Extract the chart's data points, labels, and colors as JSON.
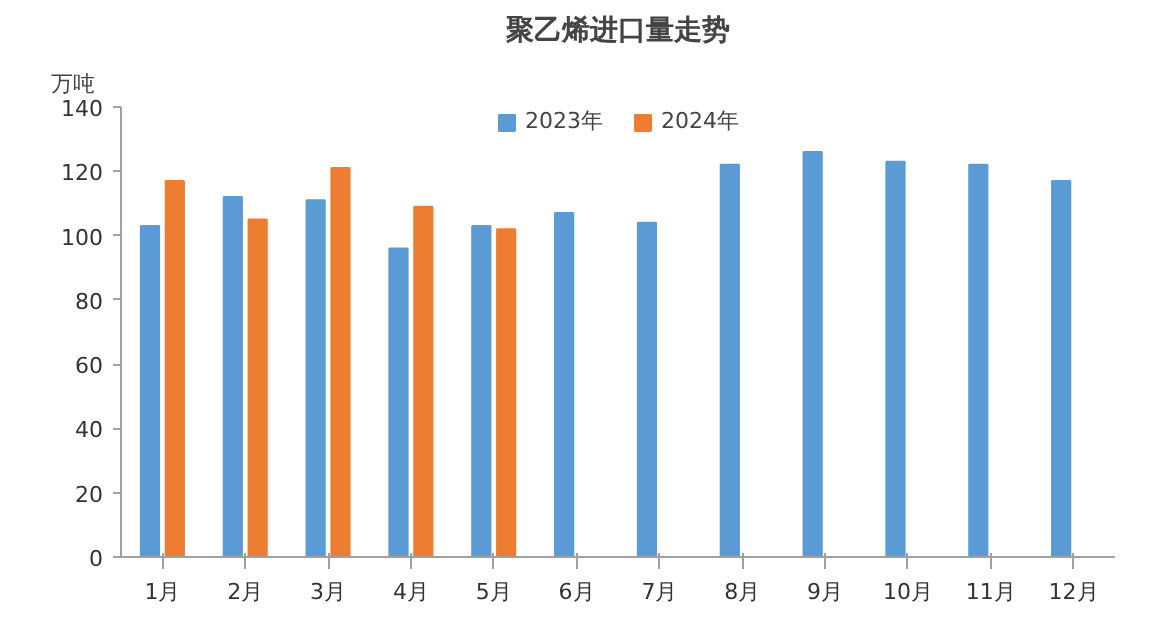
{
  "chart_data": {
    "type": "bar",
    "title": "聚乙烯进口量走势",
    "ylabel": "万吨",
    "categories": [
      "1月",
      "2月",
      "3月",
      "4月",
      "5月",
      "6月",
      "7月",
      "8月",
      "9月",
      "10月",
      "11月",
      "12月"
    ],
    "series": [
      {
        "name": "2023年",
        "color": "#5b9bd5",
        "values": [
          103,
          112,
          111,
          96,
          103,
          107,
          104,
          122,
          126,
          123,
          122,
          117
        ]
      },
      {
        "name": "2024年",
        "color": "#ed7d31",
        "values": [
          117,
          105,
          121,
          109,
          102,
          null,
          null,
          null,
          null,
          null,
          null,
          null
        ]
      }
    ],
    "ylim": [
      0,
      140
    ],
    "yticks": [
      0,
      20,
      40,
      60,
      80,
      100,
      120,
      140
    ],
    "grid": false,
    "legend": "top"
  }
}
